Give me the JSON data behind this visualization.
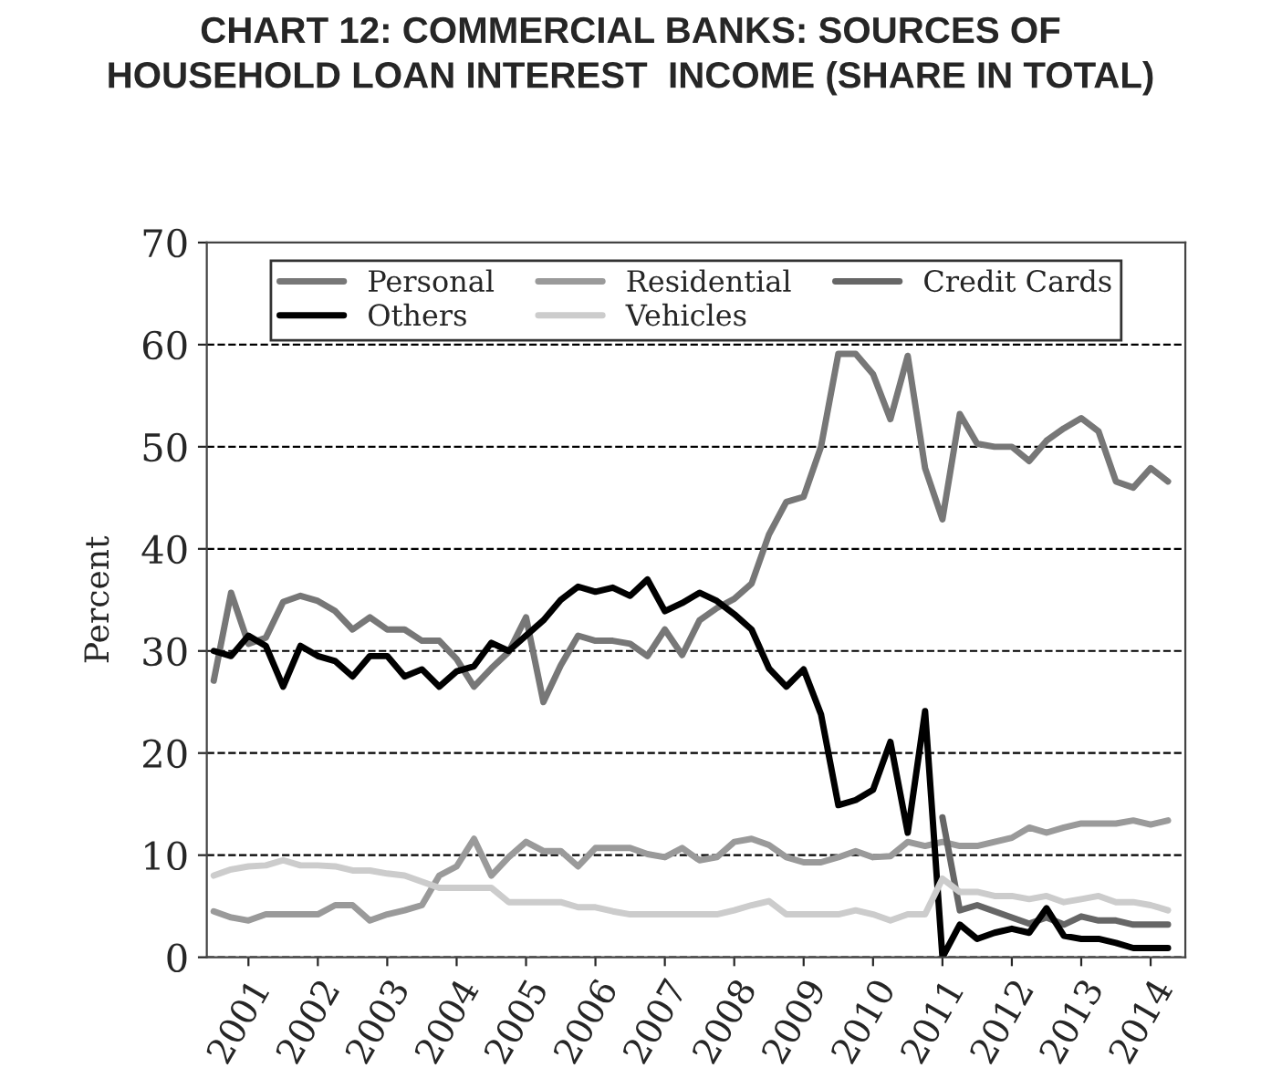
{
  "chart_data": {
    "type": "line",
    "title": "CHART 12: COMMERCIAL BANKS: SOURCES OF\nHOUSEHOLD LOAN INTEREST  INCOME (SHARE IN TOTAL)",
    "ylabel": "Percent",
    "x": [
      2000.5,
      2000.75,
      2001,
      2001.25,
      2001.5,
      2001.75,
      2002,
      2002.25,
      2002.5,
      2002.75,
      2003,
      2003.25,
      2003.5,
      2003.75,
      2004,
      2004.25,
      2004.5,
      2004.75,
      2005,
      2005.25,
      2005.5,
      2005.75,
      2006,
      2006.25,
      2006.5,
      2006.75,
      2007,
      2007.25,
      2007.5,
      2007.75,
      2008,
      2008.25,
      2008.5,
      2008.75,
      2009,
      2009.25,
      2009.5,
      2009.75,
      2010,
      2010.25,
      2010.5,
      2010.75,
      2011,
      2011.25,
      2011.5,
      2011.75,
      2012,
      2012.25,
      2012.5,
      2012.75,
      2013,
      2013.25,
      2013.5,
      2013.75,
      2014,
      2014.25
    ],
    "xlim": [
      2000.4,
      2014.5
    ],
    "xticks": [
      2001,
      2002,
      2003,
      2004,
      2005,
      2006,
      2007,
      2008,
      2009,
      2010,
      2011,
      2012,
      2013,
      2014
    ],
    "ylim": [
      0,
      70
    ],
    "yticks": [
      0,
      10,
      20,
      30,
      40,
      50,
      60,
      70
    ],
    "grid": "y",
    "legend": "top",
    "series": [
      {
        "name": "Personal",
        "color": "#777777",
        "values": [
          27.1,
          35.7,
          30.7,
          31.3,
          34.8,
          35.4,
          34.9,
          33.9,
          32.1,
          33.3,
          32.1,
          32.1,
          31,
          31,
          29.2,
          26.5,
          28.3,
          29.9,
          33.3,
          25,
          28.6,
          31.5,
          31,
          31,
          30.7,
          29.5,
          32.1,
          29.6,
          33,
          34.2,
          35.1,
          36.6,
          41.4,
          44.6,
          45.1,
          50,
          59.1,
          59.1,
          57.1,
          52.7,
          58.9,
          47.9,
          42.9,
          53.2,
          50.3,
          50,
          50,
          48.6,
          50.6,
          51.8,
          52.8,
          51.5,
          46.6,
          46,
          47.9,
          46.6
        ]
      },
      {
        "name": "Residential",
        "color": "#9a9a9a",
        "values": [
          4.5,
          3.9,
          3.6,
          4.2,
          4.2,
          4.2,
          4.2,
          5.1,
          5.1,
          3.6,
          4.2,
          4.6,
          5.1,
          8,
          8.9,
          11.6,
          8,
          9.8,
          11.3,
          10.4,
          10.4,
          8.9,
          10.7,
          10.7,
          10.7,
          10.1,
          9.8,
          10.7,
          9.5,
          9.8,
          11.3,
          11.6,
          11,
          9.8,
          9.3,
          9.3,
          9.8,
          10.4,
          9.8,
          9.9,
          11.3,
          10.9,
          11.3,
          10.9,
          10.9,
          11.3,
          11.7,
          12.7,
          12.2,
          12.7,
          13.1,
          13.1,
          13.1,
          13.4,
          13,
          13.4
        ]
      },
      {
        "name": "Credit Cards",
        "color": "#666666",
        "values": [
          null,
          null,
          null,
          null,
          null,
          null,
          null,
          null,
          null,
          null,
          null,
          null,
          null,
          null,
          null,
          null,
          null,
          null,
          null,
          null,
          null,
          null,
          null,
          null,
          null,
          null,
          null,
          null,
          null,
          null,
          null,
          null,
          null,
          null,
          null,
          null,
          null,
          null,
          null,
          null,
          null,
          null,
          13.7,
          4.6,
          5.1,
          4.5,
          3.9,
          3.3,
          3.9,
          3.2,
          4,
          3.6,
          3.6,
          3.2,
          3.2,
          3.2
        ]
      },
      {
        "name": "Others",
        "color": "#000000",
        "values": [
          30,
          29.5,
          31.5,
          30.5,
          26.5,
          30.5,
          29.5,
          29,
          27.5,
          29.5,
          29.5,
          27.5,
          28.2,
          26.5,
          28,
          28.5,
          30.8,
          30,
          31.5,
          33,
          35,
          36.3,
          35.8,
          36.2,
          35.4,
          37,
          33.9,
          34.7,
          35.7,
          34.9,
          33.6,
          32.1,
          28.3,
          26.5,
          28.2,
          23.8,
          14.9,
          15.4,
          16.4,
          21.1,
          12.2,
          24.1,
          0,
          3.2,
          1.8,
          2.4,
          2.8,
          2.4,
          4.8,
          2.1,
          1.8,
          1.8,
          1.4,
          0.9,
          0.9,
          0.9
        ]
      },
      {
        "name": "Vehicles",
        "color": "#cccccc",
        "values": [
          8,
          8.6,
          8.9,
          9,
          9.5,
          9,
          9,
          8.9,
          8.5,
          8.5,
          8.2,
          8,
          7.4,
          6.8,
          6.8,
          6.8,
          6.8,
          5.4,
          5.4,
          5.4,
          5.4,
          4.9,
          4.9,
          4.5,
          4.2,
          4.2,
          4.2,
          4.2,
          4.2,
          4.2,
          4.6,
          5.1,
          5.5,
          4.2,
          4.2,
          4.2,
          4.2,
          4.6,
          4.2,
          3.6,
          4.2,
          4.2,
          7.7,
          6.4,
          6.4,
          6,
          6,
          5.7,
          6,
          5.4,
          5.7,
          6,
          5.4,
          5.4,
          5.1,
          4.6
        ]
      }
    ]
  }
}
